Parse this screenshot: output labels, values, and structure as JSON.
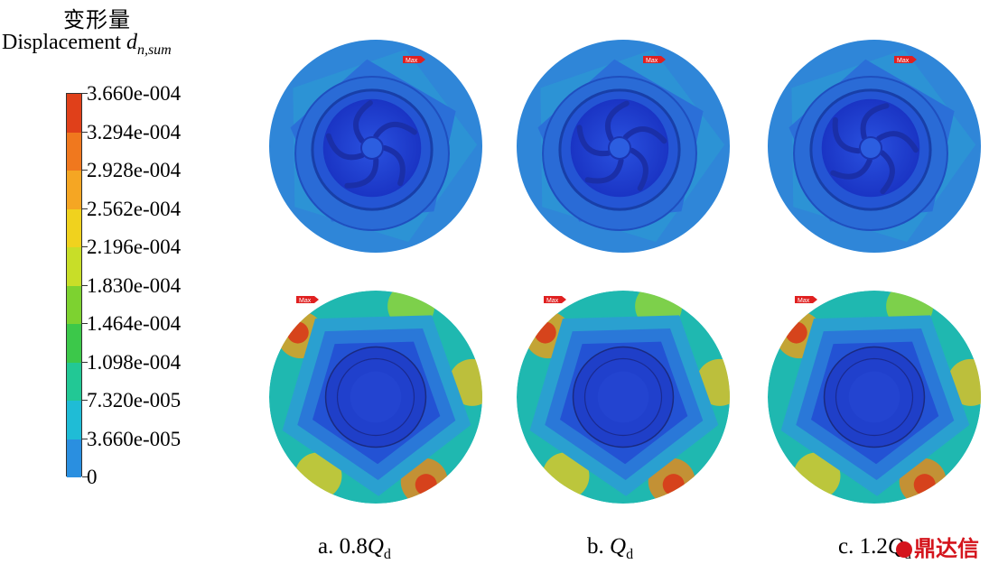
{
  "legend": {
    "title_cn": "变形量",
    "title_en_prefix": "Displacement ",
    "title_symbol": "d",
    "title_subscript": "n,sum",
    "ticks": [
      "3.660e-004",
      "3.294e-004",
      "2.928e-004",
      "2.562e-004",
      "2.196e-004",
      "1.830e-004",
      "1.464e-004",
      "1.098e-004",
      "7.320e-005",
      "3.660e-005",
      "0"
    ],
    "colors": [
      "#e0401a",
      "#f0781e",
      "#f5a623",
      "#f0d21e",
      "#c8de28",
      "#7dd230",
      "#3cc84a",
      "#22c895",
      "#1fbcd6",
      "#2a8fe0",
      "#2046d8"
    ]
  },
  "max_marker": "Max",
  "panels": [
    {
      "caption_prefix": "a. 0.8",
      "caption_q": "Q",
      "caption_sub": "d"
    },
    {
      "caption_prefix": "b. ",
      "caption_q": "Q",
      "caption_sub": "d"
    },
    {
      "caption_prefix": "c. 1.2",
      "caption_q": "Q",
      "caption_sub": "d"
    }
  ],
  "watermark": "鼎达信"
}
